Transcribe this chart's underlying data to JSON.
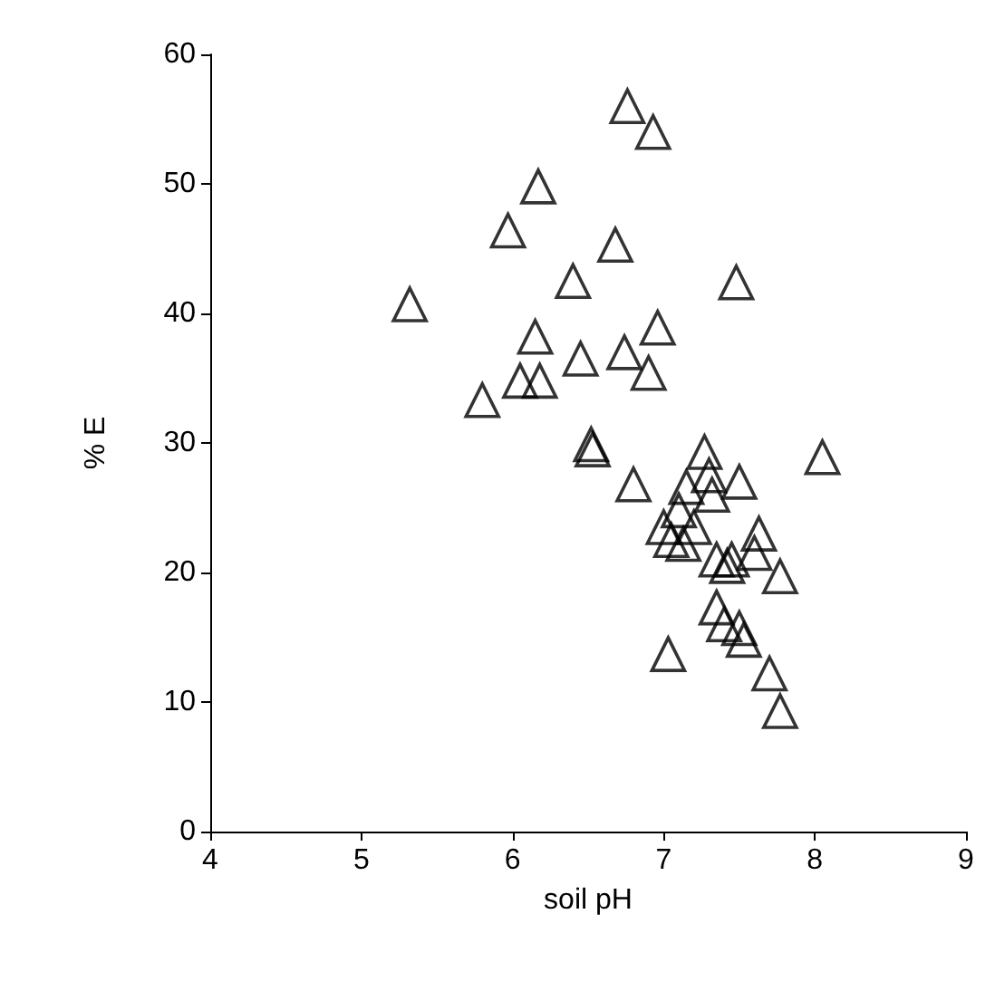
{
  "chart_data": {
    "type": "scatter",
    "xlabel": "soil pH",
    "ylabel": "% E",
    "x": [
      5.32,
      5.8,
      5.97,
      6.05,
      6.15,
      6.17,
      6.18,
      6.4,
      6.45,
      6.52,
      6.53,
      6.68,
      6.74,
      6.76,
      6.8,
      6.9,
      6.93,
      6.96,
      7.0,
      7.03,
      7.05,
      7.1,
      7.13,
      7.15,
      7.2,
      7.27,
      7.3,
      7.32,
      7.35,
      7.35,
      7.4,
      7.42,
      7.45,
      7.48,
      7.5,
      7.5,
      7.53,
      7.6,
      7.63,
      7.7,
      7.77,
      7.77,
      8.05
    ],
    "values": [
      40.7,
      33.3,
      46.4,
      34.8,
      38.2,
      49.8,
      34.8,
      42.5,
      36.5,
      29.9,
      29.5,
      45.3,
      37,
      56,
      26.8,
      35.4,
      54,
      38.9,
      23.5,
      13.7,
      22.5,
      24.8,
      22.2,
      26.6,
      23.5,
      29.3,
      27.5,
      26,
      17.3,
      21,
      16,
      20.5,
      21,
      42.4,
      27,
      15.7,
      14.8,
      21.5,
      23,
      12.2,
      19.7,
      9.3,
      28.9
    ],
    "color": "#000000",
    "marker": "triangle",
    "xlim": [
      4,
      9
    ],
    "xticks": [
      4,
      5,
      6,
      7,
      8,
      9
    ],
    "ylim": [
      0,
      60
    ],
    "yticks": [
      0,
      10,
      20,
      30,
      40,
      50,
      60
    ],
    "grid": false
  }
}
